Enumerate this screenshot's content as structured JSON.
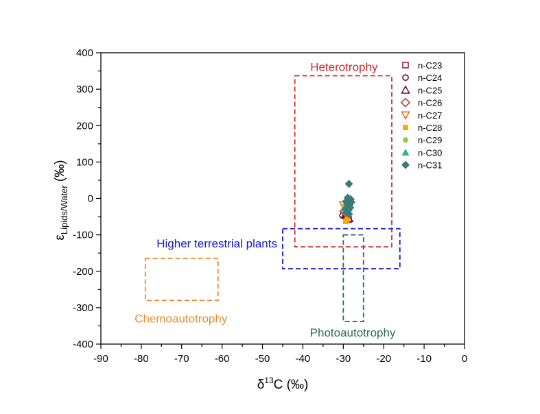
{
  "chart_data": {
    "type": "scatter",
    "x_axis": {
      "label_main": "δ",
      "label_sup": "13",
      "label_rest": "C (‰)",
      "range": [
        -90,
        0
      ],
      "ticks": [
        -90,
        -80,
        -70,
        -60,
        -50,
        -40,
        -30,
        -20,
        -10,
        0
      ],
      "tick_labels": [
        "-90",
        "-80",
        "-70",
        "-60",
        "-50",
        "-40",
        "-30",
        "-20",
        "-10",
        "0"
      ]
    },
    "y_axis": {
      "label_main": "ε",
      "label_sub": "Lipids/Water",
      "label_rest": " (‰)",
      "range": [
        -400,
        400
      ],
      "ticks": [
        -400,
        -300,
        -200,
        -100,
        0,
        100,
        200,
        300,
        400
      ],
      "tick_labels": [
        "-400",
        "-300",
        "-200",
        "-100",
        "0",
        "100",
        "200",
        "300",
        "400"
      ]
    },
    "regions": [
      {
        "name": "Heterotrophy",
        "x": [
          -42,
          -18
        ],
        "y": [
          -133,
          337
        ],
        "color": "#d62728",
        "label": "Heterotrophy"
      },
      {
        "name": "Higher terrestrial plants",
        "x": [
          -45,
          -16
        ],
        "y": [
          -193,
          -83
        ],
        "color": "#1515d6",
        "label": "Higher terrestrial plants"
      },
      {
        "name": "Photoautotrophy",
        "x": [
          -30,
          -25
        ],
        "y": [
          -338,
          -100
        ],
        "color": "#2e6b57",
        "label": "Photoautotrophy"
      },
      {
        "name": "Chemoautotrophy",
        "x": [
          -79,
          -61
        ],
        "y": [
          -280,
          -165
        ],
        "color": "#ee8a2c",
        "label": "Chemoautotrophy"
      }
    ],
    "series": [
      {
        "name": "n-C23",
        "marker": "square-open",
        "color": "#9c1f3e",
        "points": [
          [
            -29.1,
            -50
          ],
          [
            -28.7,
            -58
          ]
        ]
      },
      {
        "name": "n-C24",
        "marker": "circle-open",
        "color": "#5a0a26",
        "points": [
          [
            -30.2,
            -47
          ],
          [
            -29.4,
            -52
          ]
        ]
      },
      {
        "name": "n-C25",
        "marker": "triangle-open",
        "color": "#7a1530",
        "points": [
          [
            -28.6,
            -55
          ],
          [
            -29.5,
            -44
          ]
        ]
      },
      {
        "name": "n-C26",
        "marker": "diamond-open",
        "color": "#b5401e",
        "points": [
          [
            -29.8,
            -35
          ],
          [
            -29.0,
            -41
          ]
        ]
      },
      {
        "name": "n-C27",
        "marker": "triangle-down-open",
        "color": "#d9781a",
        "points": [
          [
            -30.0,
            -18
          ],
          [
            -29.2,
            -24
          ]
        ]
      },
      {
        "name": "n-C28",
        "marker": "square",
        "color": "#ffaa00",
        "points": [
          [
            -29.4,
            -63
          ],
          [
            -29.0,
            -57
          ]
        ]
      },
      {
        "name": "n-C29",
        "marker": "circle",
        "color": "#8fce3c",
        "points": [
          [
            -29.5,
            -22
          ],
          [
            -29.0,
            -12
          ],
          [
            -28.7,
            -30
          ]
        ]
      },
      {
        "name": "n-C30",
        "marker": "triangle",
        "color": "#3db08a",
        "points": [
          [
            -29.6,
            -28
          ],
          [
            -29.2,
            -36
          ],
          [
            -28.9,
            -40
          ],
          [
            -28.4,
            -20
          ]
        ]
      },
      {
        "name": "n-C31",
        "marker": "diamond",
        "color": "#3a7a78",
        "points": [
          [
            -28.6,
            40
          ],
          [
            -29.3,
            -8
          ],
          [
            -28.8,
            -5
          ],
          [
            -28.2,
            -2
          ],
          [
            -28.0,
            -10
          ],
          [
            -29.0,
            -15
          ],
          [
            -28.5,
            -18
          ],
          [
            -29.4,
            -28
          ],
          [
            -28.7,
            -32
          ],
          [
            -28.3,
            -25
          ],
          [
            -29.1,
            -38
          ],
          [
            -28.6,
            -43
          ],
          [
            -28.9,
            2
          ]
        ]
      }
    ],
    "legend_position": "top-right"
  }
}
